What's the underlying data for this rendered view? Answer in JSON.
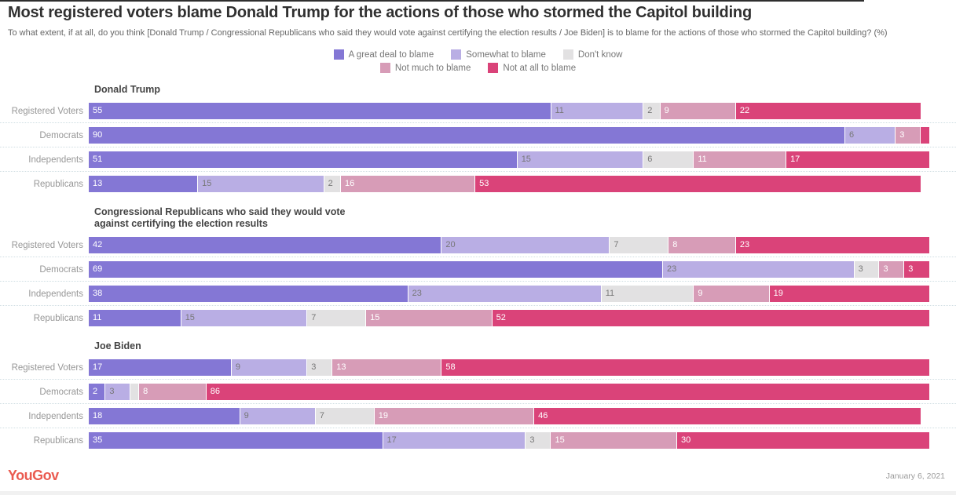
{
  "title": "Most registered voters blame Donald Trump for the actions of those who stormed the Capitol building",
  "subtitle": "To what extent, if at all, do you think [Donald Trump / Congressional Republicans who said they would vote against certifying the election results / Joe Biden] is to blame for the actions of those who stormed the Capitol building? (%)",
  "chart_data": {
    "type": "bar",
    "stacked": true,
    "orientation": "horizontal",
    "axis_range": [
      0,
      100
    ],
    "unit": "%",
    "categories": [
      "A great deal to blame",
      "Somewhat to blame",
      "Don't know",
      "Not much to blame",
      "Not at all to blame"
    ],
    "category_keys": [
      "great-deal",
      "somewhat",
      "dont-know",
      "not-much",
      "not-at-all"
    ],
    "colors": [
      "#8477d5",
      "#b9aee4",
      "#e2e1e2",
      "#d79cb7",
      "#da4379"
    ],
    "label_colors": [
      "#ffffff",
      "#777777",
      "#777777",
      "#ffffff",
      "#ffffff"
    ],
    "legend_rows": [
      [
        0,
        1,
        2
      ],
      [
        3,
        4
      ]
    ],
    "groups": [
      {
        "title": "Donald Trump",
        "rows": [
          {
            "label": "Registered Voters",
            "values": [
              55,
              11,
              2,
              9,
              22
            ]
          },
          {
            "label": "Democrats",
            "values": [
              90,
              6,
              0,
              3,
              1
            ]
          },
          {
            "label": "Independents",
            "values": [
              51,
              15,
              6,
              11,
              17
            ]
          },
          {
            "label": "Republicans",
            "values": [
              13,
              15,
              2,
              16,
              53
            ]
          }
        ]
      },
      {
        "title": "Congressional Republicans who said they would vote against certifying the election results",
        "rows": [
          {
            "label": "Registered Voters",
            "values": [
              42,
              20,
              7,
              8,
              23
            ]
          },
          {
            "label": "Democrats",
            "values": [
              69,
              23,
              3,
              3,
              3
            ]
          },
          {
            "label": "Independents",
            "values": [
              38,
              23,
              11,
              9,
              19
            ]
          },
          {
            "label": "Republicans",
            "values": [
              11,
              15,
              7,
              15,
              52
            ]
          }
        ]
      },
      {
        "title": "Joe Biden",
        "rows": [
          {
            "label": "Registered Voters",
            "values": [
              17,
              9,
              3,
              13,
              58
            ]
          },
          {
            "label": "Democrats",
            "values": [
              2,
              3,
              1,
              8,
              86
            ]
          },
          {
            "label": "Independents",
            "values": [
              18,
              9,
              7,
              19,
              46
            ]
          },
          {
            "label": "Republicans",
            "values": [
              35,
              17,
              3,
              15,
              30
            ]
          }
        ]
      }
    ]
  },
  "footer": {
    "logo": "YouGov",
    "logo_color": "#ea5a4f",
    "date": "January 6, 2021"
  }
}
